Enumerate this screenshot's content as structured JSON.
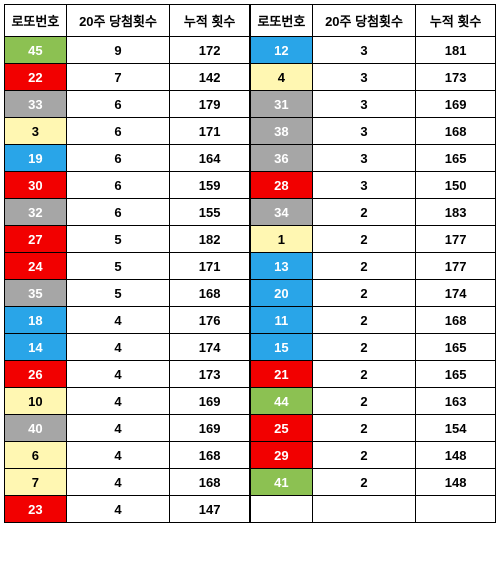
{
  "headers": {
    "lottoNumber": "로또번호",
    "hits20": "20주 당첨횟수",
    "totalHits": "누적 횟수"
  },
  "colorMap": {
    "1": "yellow",
    "2": "yellow",
    "3": "yellow",
    "4": "yellow",
    "5": "yellow",
    "6": "yellow",
    "7": "yellow",
    "8": "yellow",
    "9": "yellow",
    "10": "yellow",
    "11": "blue",
    "12": "blue",
    "13": "blue",
    "14": "blue",
    "15": "blue",
    "16": "blue",
    "17": "blue",
    "18": "blue",
    "19": "blue",
    "20": "blue",
    "21": "red",
    "22": "red",
    "23": "red",
    "24": "red",
    "25": "red",
    "26": "red",
    "27": "red",
    "28": "red",
    "29": "red",
    "30": "red",
    "31": "gray",
    "32": "gray",
    "33": "gray",
    "34": "gray",
    "35": "gray",
    "36": "gray",
    "37": "gray",
    "38": "gray",
    "39": "gray",
    "40": "gray",
    "41": "green",
    "42": "green",
    "43": "green",
    "44": "green",
    "45": "green"
  },
  "left": [
    {
      "num": "45",
      "hits20": "9",
      "total": "172"
    },
    {
      "num": "22",
      "hits20": "7",
      "total": "142"
    },
    {
      "num": "33",
      "hits20": "6",
      "total": "179"
    },
    {
      "num": "3",
      "hits20": "6",
      "total": "171"
    },
    {
      "num": "19",
      "hits20": "6",
      "total": "164"
    },
    {
      "num": "30",
      "hits20": "6",
      "total": "159"
    },
    {
      "num": "32",
      "hits20": "6",
      "total": "155"
    },
    {
      "num": "27",
      "hits20": "5",
      "total": "182"
    },
    {
      "num": "24",
      "hits20": "5",
      "total": "171"
    },
    {
      "num": "35",
      "hits20": "5",
      "total": "168"
    },
    {
      "num": "18",
      "hits20": "4",
      "total": "176"
    },
    {
      "num": "14",
      "hits20": "4",
      "total": "174"
    },
    {
      "num": "26",
      "hits20": "4",
      "total": "173"
    },
    {
      "num": "10",
      "hits20": "4",
      "total": "169"
    },
    {
      "num": "40",
      "hits20": "4",
      "total": "169"
    },
    {
      "num": "6",
      "hits20": "4",
      "total": "168"
    },
    {
      "num": "7",
      "hits20": "4",
      "total": "168"
    },
    {
      "num": "23",
      "hits20": "4",
      "total": "147"
    }
  ],
  "right": [
    {
      "num": "12",
      "hits20": "3",
      "total": "181"
    },
    {
      "num": "4",
      "hits20": "3",
      "total": "173"
    },
    {
      "num": "31",
      "hits20": "3",
      "total": "169"
    },
    {
      "num": "38",
      "hits20": "3",
      "total": "168"
    },
    {
      "num": "36",
      "hits20": "3",
      "total": "165"
    },
    {
      "num": "28",
      "hits20": "3",
      "total": "150"
    },
    {
      "num": "34",
      "hits20": "2",
      "total": "183"
    },
    {
      "num": "1",
      "hits20": "2",
      "total": "177"
    },
    {
      "num": "13",
      "hits20": "2",
      "total": "177"
    },
    {
      "num": "20",
      "hits20": "2",
      "total": "174"
    },
    {
      "num": "11",
      "hits20": "2",
      "total": "168"
    },
    {
      "num": "15",
      "hits20": "2",
      "total": "165"
    },
    {
      "num": "21",
      "hits20": "2",
      "total": "165"
    },
    {
      "num": "44",
      "hits20": "2",
      "total": "163"
    },
    {
      "num": "25",
      "hits20": "2",
      "total": "154"
    },
    {
      "num": "29",
      "hits20": "2",
      "total": "148"
    },
    {
      "num": "41",
      "hits20": "2",
      "total": "148"
    }
  ]
}
